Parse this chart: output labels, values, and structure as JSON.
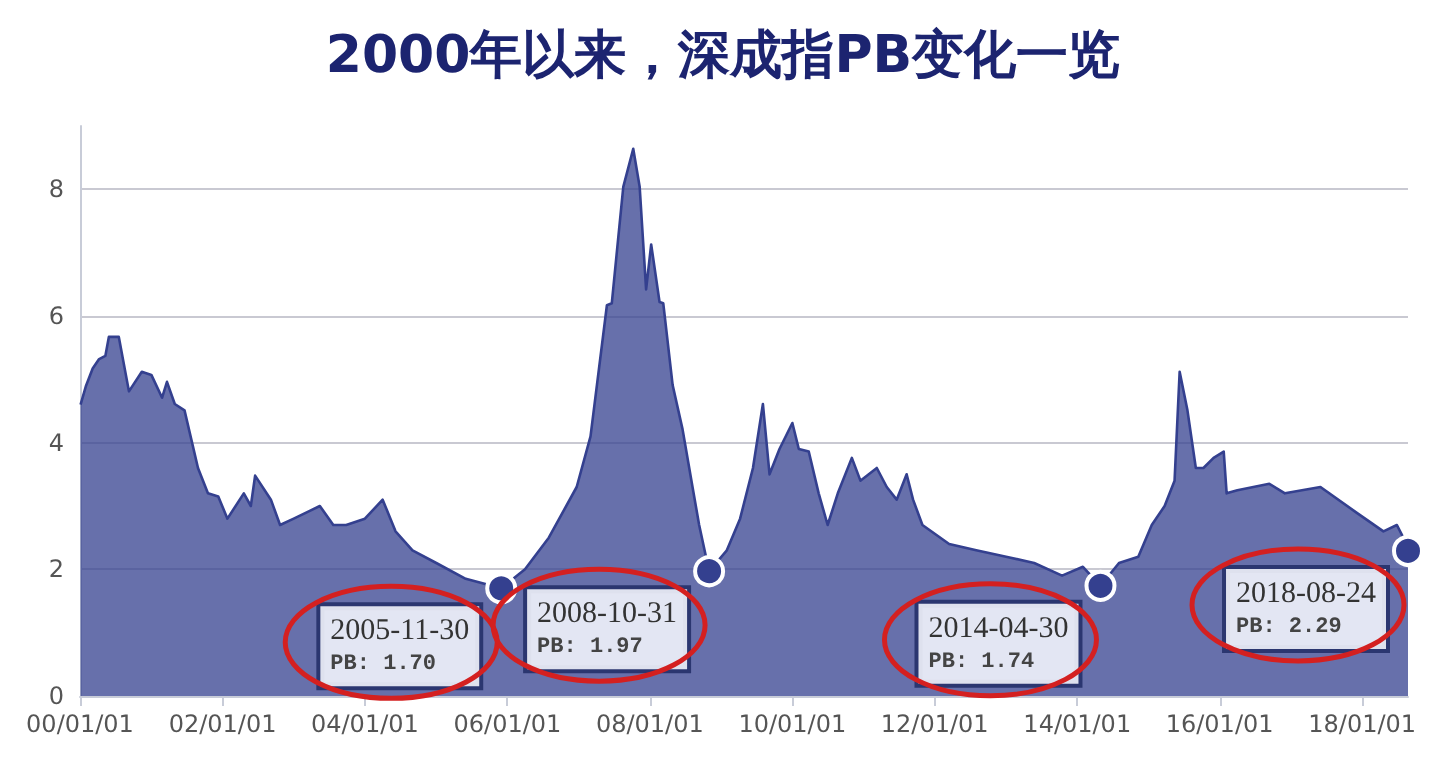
{
  "chart_data": {
    "type": "area",
    "title": "2000年以来，深成指PB变化一览",
    "x": [
      "2000-01-04",
      "2000-02-01",
      "2000-03-06",
      "2000-04-08",
      "2000-05-10",
      "2000-05-28",
      "2000-07-18",
      "2000-09-08",
      "2000-11-13",
      "2001-01-01",
      "2001-02-25",
      "2001-03-22",
      "2001-05-01",
      "2001-06-20",
      "2001-08-28",
      "2001-10-18",
      "2001-12-10",
      "2002-01-26",
      "2002-04-20",
      "2002-05-26",
      "2002-06-17",
      "2002-09-06",
      "2002-10-23",
      "2003-01-01",
      "2003-05-15",
      "2003-07-23",
      "2003-09-27",
      "2004-01-01",
      "2004-04-01",
      "2004-06-06",
      "2004-09-01",
      "2005-01-01",
      "2005-06-01",
      "2005-11-30",
      "2006-04-01",
      "2006-08-01",
      "2006-12-22",
      "2007-03-03",
      "2007-05-26",
      "2007-06-20",
      "2007-08-18",
      "2007-10-08",
      "2007-11-10",
      "2007-12-13",
      "2008-01-08",
      "2008-02-20",
      "2008-03-10",
      "2008-04-27",
      "2008-06-17",
      "2008-08-07",
      "2008-09-10",
      "2008-10-31",
      "2009-01-30",
      "2009-04-08",
      "2009-06-13",
      "2009-08-03",
      "2009-09-06",
      "2009-10-27",
      "2010-01-01",
      "2010-02-03",
      "2010-03-26",
      "2010-05-16",
      "2010-07-01",
      "2010-08-22",
      "2010-11-02",
      "2010-12-16",
      "2011-03-10",
      "2011-04-30",
      "2011-06-20",
      "2011-08-10",
      "2011-09-12",
      "2011-10-30",
      "2012-03-15",
      "2012-08-01",
      "2013-01-01",
      "2013-05-25",
      "2013-10-15",
      "2014-01-30",
      "2014-04-30",
      "2014-08-03",
      "2014-11-10",
      "2015-01-18",
      "2015-03-25",
      "2015-05-15",
      "2015-06-10",
      "2015-07-20",
      "2015-09-01",
      "2015-10-10",
      "2015-12-01",
      "2016-01-22",
      "2016-02-06",
      "2016-04-01",
      "2016-09-12",
      "2016-12-01",
      "2017-06-01",
      "2017-12-01",
      "2018-04-20",
      "2018-06-28",
      "2018-07-31",
      "2018-08-24"
    ],
    "series": [
      {
        "color": "#34408f",
        "values": [
          4.6,
          4.9,
          5.17,
          5.32,
          5.37,
          5.67,
          5.67,
          4.81,
          5.12,
          5.07,
          4.71,
          4.96,
          4.61,
          4.51,
          3.6,
          3.2,
          3.15,
          2.8,
          3.2,
          3.0,
          3.48,
          3.1,
          2.7,
          2.8,
          3.0,
          2.7,
          2.7,
          2.8,
          3.1,
          2.6,
          2.3,
          2.1,
          1.85,
          1.7,
          2.0,
          2.5,
          3.3,
          4.1,
          6.17,
          6.2,
          8.04,
          8.64,
          8.04,
          6.42,
          7.13,
          6.22,
          6.2,
          4.91,
          4.21,
          3.3,
          2.7,
          1.97,
          2.3,
          2.8,
          3.6,
          4.61,
          3.5,
          3.9,
          4.31,
          3.9,
          3.86,
          3.2,
          2.7,
          3.2,
          3.76,
          3.4,
          3.6,
          3.3,
          3.1,
          3.5,
          3.1,
          2.7,
          2.4,
          2.3,
          2.2,
          2.1,
          1.9,
          2.04,
          1.74,
          2.1,
          2.2,
          2.7,
          3.0,
          3.4,
          5.12,
          4.51,
          3.6,
          3.6,
          3.76,
          3.86,
          3.2,
          3.25,
          3.35,
          3.2,
          3.3,
          2.9,
          2.6,
          2.7,
          2.5,
          2.29
        ]
      }
    ],
    "xlim": [
      "2000-01-01",
      "2018-08-24"
    ],
    "xticks": [
      {
        "value": "2000-01-01",
        "label": "00/01/01"
      },
      {
        "value": "2002-01-01",
        "label": "02/01/01"
      },
      {
        "value": "2004-01-01",
        "label": "04/01/01"
      },
      {
        "value": "2006-01-01",
        "label": "06/01/01"
      },
      {
        "value": "2008-01-01",
        "label": "08/01/01"
      },
      {
        "value": "2010-01-01",
        "label": "10/01/01"
      },
      {
        "value": "2012-01-01",
        "label": "12/01/01"
      },
      {
        "value": "2014-01-01",
        "label": "14/01/01"
      },
      {
        "value": "2016-01-01",
        "label": "16/01/01"
      },
      {
        "value": "2018-01-01",
        "label": "18/01/01"
      }
    ],
    "ylim": [
      0,
      9
    ],
    "yticks": [
      0,
      2,
      4,
      6,
      8
    ],
    "grid": "y",
    "marker": "none",
    "annotations": [
      {
        "text": "2005-11-30\nPB: 1.70",
        "x": "2005-11-30",
        "y": 1.7
      },
      {
        "text": "2008-10-31\nPB: 1.97",
        "x": "2008-10-31",
        "y": 1.97
      },
      {
        "text": "2014-04-30\nPB: 1.74",
        "x": "2014-04-30",
        "y": 1.74
      },
      {
        "text": "2018-08-24\nPB: 2.29",
        "x": "2018-08-24",
        "y": 2.29
      }
    ]
  }
}
